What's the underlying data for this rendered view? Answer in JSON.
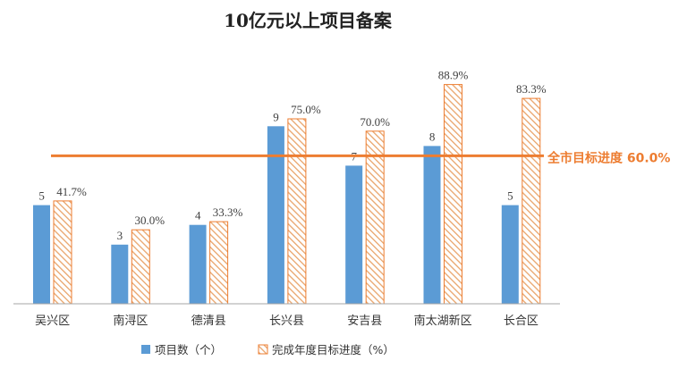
{
  "chart_data": {
    "type": "bar",
    "title": "10亿元以上项目备案",
    "categories": [
      "吴兴区",
      "南浔区",
      "德清县",
      "长兴县",
      "安吉县",
      "南太湖新区",
      "长合区"
    ],
    "series": [
      {
        "name": "项目数（个）",
        "values": [
          5,
          3,
          4,
          9,
          7,
          8,
          5
        ],
        "labels": [
          "5",
          "3",
          "4",
          "9",
          "7",
          "8",
          "5"
        ],
        "color": "#5B9BD5",
        "axis": "primary"
      },
      {
        "name": "完成年度目标进度（%）",
        "values": [
          41.7,
          30.0,
          33.3,
          75.0,
          70.0,
          88.9,
          83.3
        ],
        "labels": [
          "41.7%",
          "30.0%",
          "33.3%",
          "75.0%",
          "70.0%",
          "88.9%",
          "83.3%"
        ],
        "color": "#ED7D31",
        "fill_style": "diagonal-hatch",
        "axis": "secondary"
      }
    ],
    "reference_line": {
      "label": "全市目标进度 60.0%",
      "value": 60.0,
      "axis": "secondary",
      "color": "#ED7D31"
    },
    "ylim": [
      0,
      12.5
    ],
    "y2lim": [
      0,
      100
    ],
    "axes_visible": false,
    "grid": false,
    "legend_position": "bottom"
  }
}
